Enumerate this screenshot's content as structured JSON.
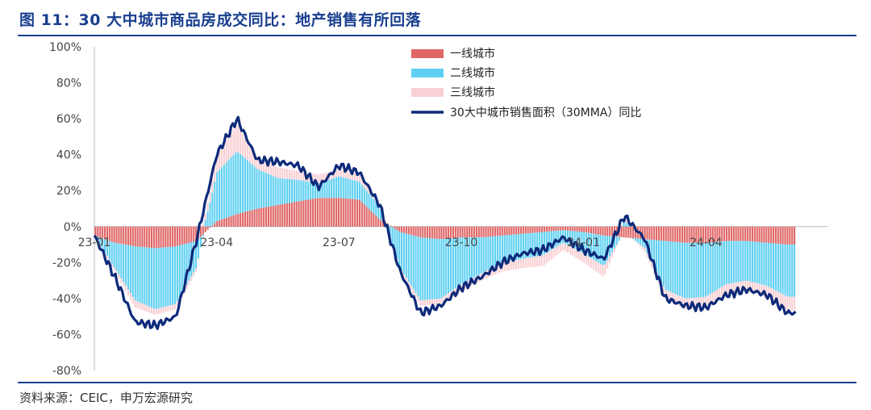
{
  "header": {
    "title": "图 11：30 大中城市商品房成交同比：地产销售有所回落"
  },
  "footer": {
    "source": "资料来源：CEIC，申万宏源研究"
  },
  "colors": {
    "tier1": "#e06666",
    "tier2": "#5fd0f2",
    "tier3": "#f9d0d4",
    "total": "#0d2a7a",
    "axis": "#bbbbbb",
    "brand": "#1a3f8f"
  },
  "chart_data": {
    "type": "bar+line",
    "stacked": true,
    "x_tick_labels": [
      "23-01",
      "23-04",
      "23-07",
      "23-10",
      "24-01",
      "24-04"
    ],
    "y_tick_labels": [
      "100%",
      "80%",
      "60%",
      "40%",
      "20%",
      "0%",
      "-20%",
      "-40%",
      "-60%",
      "-80%"
    ],
    "ylim": [
      -80,
      100
    ],
    "legend_position": "top-right",
    "x_months": [
      0,
      0.5,
      1,
      1.5,
      2,
      2.5,
      3,
      3.5,
      4,
      4.5,
      5,
      5.5,
      6,
      6.5,
      7,
      7.5,
      8,
      8.5,
      9,
      9.5,
      10,
      10.5,
      11,
      11.5,
      12,
      12.5,
      13,
      13.5,
      14,
      14.5,
      15,
      15.5,
      16,
      16.5,
      17
    ],
    "series": [
      {
        "name": "一线城市",
        "type": "bar",
        "values": [
          -5,
          -9,
          -11,
          -12,
          -11,
          -8,
          3,
          7,
          10,
          12,
          14,
          16,
          16,
          15,
          4,
          -3,
          -6,
          -7,
          -6,
          -6,
          -5,
          -4,
          -3,
          -2,
          -3,
          -5,
          -6,
          -7,
          -8,
          -9,
          -9,
          -8,
          -8,
          -9,
          -10
        ]
      },
      {
        "name": "二线城市",
        "type": "bar",
        "values": [
          0,
          -14,
          -30,
          -34,
          -32,
          -15,
          27,
          35,
          22,
          15,
          12,
          8,
          12,
          10,
          7,
          -20,
          -35,
          -33,
          -26,
          -20,
          -15,
          -14,
          -13,
          -7,
          -12,
          -17,
          3,
          -5,
          -27,
          -31,
          -30,
          -24,
          -22,
          -24,
          -29
        ]
      },
      {
        "name": "三线城市",
        "type": "bar",
        "values": [
          0,
          -2,
          -4,
          -3,
          -3,
          -2,
          10,
          15,
          6,
          6,
          5,
          5,
          4,
          4,
          3,
          -2,
          -3,
          -3,
          -4,
          -4,
          -5,
          -5,
          -6,
          -4,
          -5,
          -6,
          2,
          -2,
          -5,
          -6,
          -5,
          -6,
          -6,
          -6,
          -8
        ]
      },
      {
        "name": "30大中城市销售面积（30MMA）同比",
        "type": "line",
        "values": [
          -5,
          -28,
          -53,
          -55,
          -50,
          -8,
          40,
          60,
          37,
          36,
          34,
          22,
          34,
          30,
          12,
          -25,
          -48,
          -44,
          -34,
          -28,
          -20,
          -15,
          -13,
          -6,
          -13,
          -18,
          6,
          -7,
          -40,
          -44,
          -45,
          -38,
          -35,
          -38,
          -48
        ]
      }
    ]
  }
}
